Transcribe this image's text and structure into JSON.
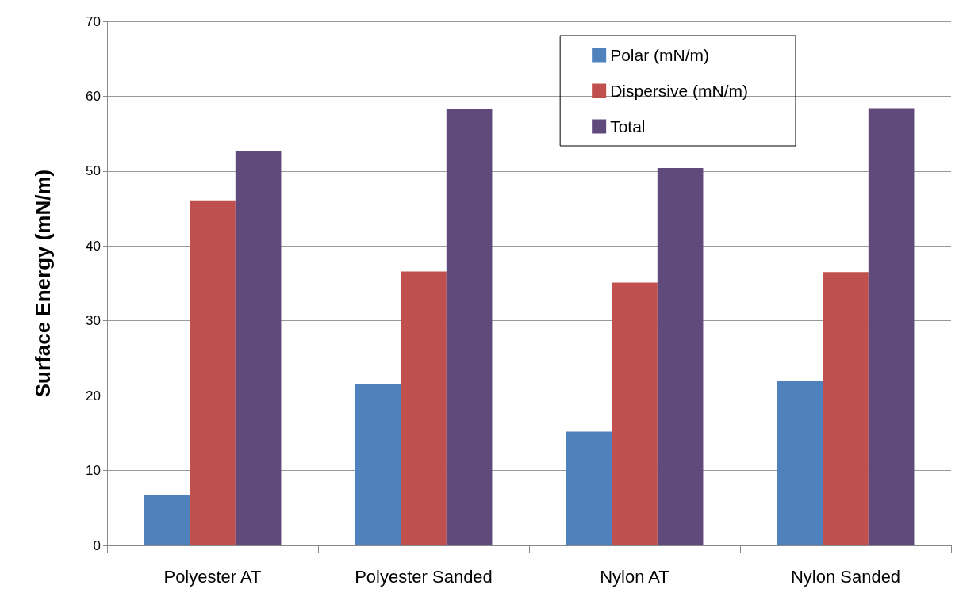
{
  "chart_data": {
    "type": "bar",
    "ylabel": "Surface Energy (mN/m)",
    "categories": [
      "Polyester AT",
      "Polyester Sanded",
      "Nylon AT",
      "Nylon Sanded"
    ],
    "series": [
      {
        "name": "Polar (mN/m)",
        "color": "#4f81bd",
        "values": [
          6.7,
          21.6,
          15.2,
          22.0
        ]
      },
      {
        "name": "Dispersive (mN/m)",
        "color": "#c0504d",
        "values": [
          46.1,
          36.6,
          35.1,
          36.5
        ]
      },
      {
        "name": "Total",
        "color": "#604a7b",
        "values": [
          52.7,
          58.3,
          50.4,
          58.4
        ]
      }
    ],
    "ylim": [
      0,
      70
    ],
    "yticks": [
      0,
      10,
      20,
      30,
      40,
      50,
      60,
      70
    ],
    "grid": "y",
    "legend": "top right"
  }
}
